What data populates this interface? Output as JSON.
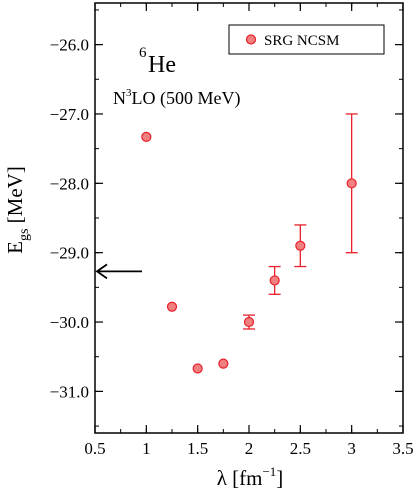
{
  "chart_data": {
    "type": "scatter",
    "title": "",
    "xlabel": "λ [fm",
    "xlabel_exp": "−1",
    "xlabel_tail": "]",
    "ylabel": "E",
    "ylabel_sub": "gs",
    "ylabel_tail": " [MeV]",
    "xlim": [
      0.5,
      3.5
    ],
    "ylim": [
      -31.6,
      -25.4
    ],
    "xticks": [
      0.5,
      1,
      1.5,
      2,
      2.5,
      3,
      3.5
    ],
    "xtick_labels": [
      "0.5",
      "1",
      "1.5",
      "2",
      "2.5",
      "3",
      "3.5"
    ],
    "yticks": [
      -31,
      -30,
      -29,
      -28,
      -27,
      -26
    ],
    "ytick_labels": [
      "−31.0",
      "−30.0",
      "−29.0",
      "−28.0",
      "−27.0",
      "−26.0"
    ],
    "grid": false,
    "legend_position": "top-right",
    "series": [
      {
        "name": "SRG NCSM",
        "color": "#e8202a",
        "fill": "#f08080",
        "points": [
          {
            "x": 1.0,
            "y": -27.33,
            "err": 0.0
          },
          {
            "x": 1.25,
            "y": -29.78,
            "err": 0.0
          },
          {
            "x": 1.5,
            "y": -30.67,
            "err": 0.0
          },
          {
            "x": 1.75,
            "y": -30.6,
            "err": 0.0
          },
          {
            "x": 2.0,
            "y": -30.0,
            "err": 0.1
          },
          {
            "x": 2.25,
            "y": -29.4,
            "err": 0.2
          },
          {
            "x": 2.5,
            "y": -28.9,
            "err": 0.3
          },
          {
            "x": 3.0,
            "y": -28.0,
            "err": 1.0
          }
        ]
      }
    ],
    "annotations": {
      "nucleus_mass": "6",
      "nucleus_symbol": "He",
      "interaction_base": "N",
      "interaction_exp": "3",
      "interaction_tail": "LO (500 MeV)"
    },
    "arrow_value": -29.27
  }
}
